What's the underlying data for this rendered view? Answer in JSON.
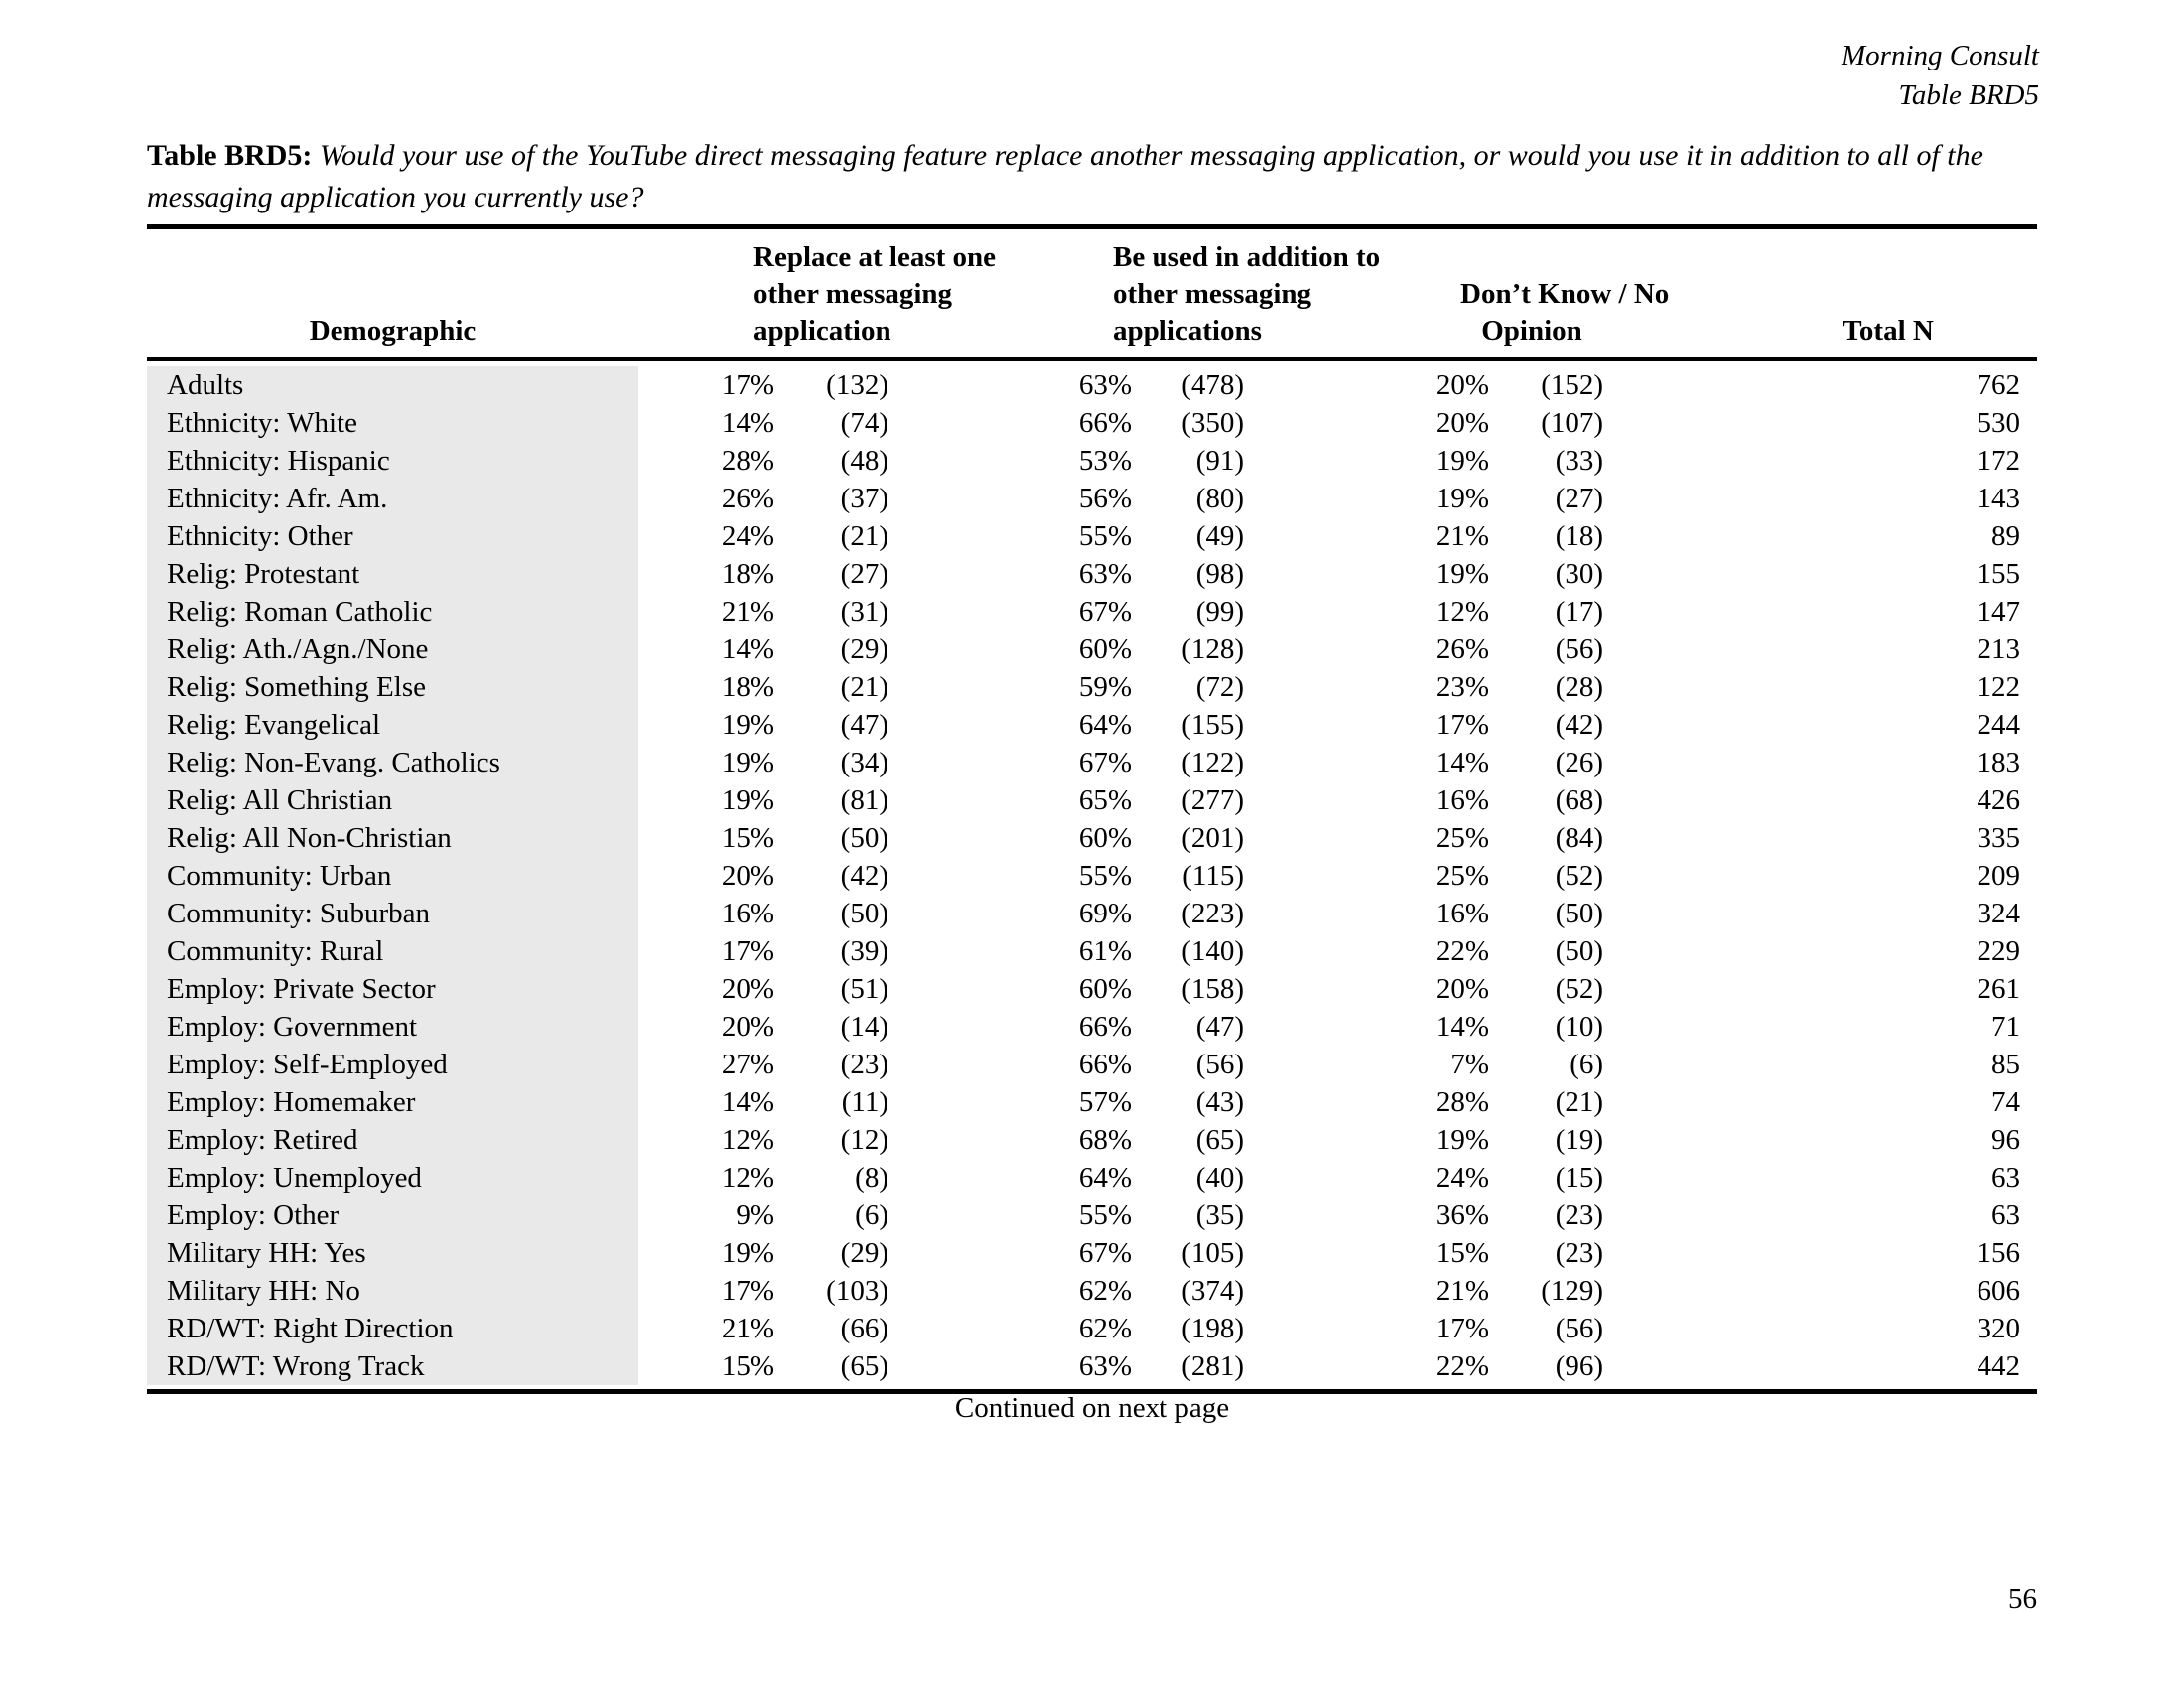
{
  "page": {
    "brand": "Morning Consult",
    "table_ref": "Table BRD5",
    "title_label": "Table BRD5:",
    "title_question": "Would your use of the YouTube direct messaging feature replace another messaging application, or would you use it in addition to all of the messaging application you currently use?",
    "continued_note": "Continued on next page",
    "page_number": "56"
  },
  "table": {
    "header": {
      "demographic": "Demographic",
      "replace_lines": [
        "Replace at least one",
        "other messaging",
        "application"
      ],
      "addition_lines": [
        "Be used in addition to",
        "other messaging",
        "applications"
      ],
      "dontknow_lines": [
        "Don’t Know / No",
        "Opinion"
      ],
      "total": "Total N"
    },
    "rows": [
      {
        "label": "Adults",
        "pct1": "17%",
        "n1": "(132)",
        "pct2": "63%",
        "n2": "(478)",
        "pct3": "20%",
        "n3": "(152)",
        "total": "762"
      },
      {
        "label": "Ethnicity: White",
        "pct1": "14%",
        "n1": "(74)",
        "pct2": "66%",
        "n2": "(350)",
        "pct3": "20%",
        "n3": "(107)",
        "total": "530"
      },
      {
        "label": "Ethnicity: Hispanic",
        "pct1": "28%",
        "n1": "(48)",
        "pct2": "53%",
        "n2": "(91)",
        "pct3": "19%",
        "n3": "(33)",
        "total": "172"
      },
      {
        "label": "Ethnicity: Afr. Am.",
        "pct1": "26%",
        "n1": "(37)",
        "pct2": "56%",
        "n2": "(80)",
        "pct3": "19%",
        "n3": "(27)",
        "total": "143"
      },
      {
        "label": "Ethnicity: Other",
        "pct1": "24%",
        "n1": "(21)",
        "pct2": "55%",
        "n2": "(49)",
        "pct3": "21%",
        "n3": "(18)",
        "total": "89"
      },
      {
        "label": "Relig: Protestant",
        "pct1": "18%",
        "n1": "(27)",
        "pct2": "63%",
        "n2": "(98)",
        "pct3": "19%",
        "n3": "(30)",
        "total": "155"
      },
      {
        "label": "Relig: Roman Catholic",
        "pct1": "21%",
        "n1": "(31)",
        "pct2": "67%",
        "n2": "(99)",
        "pct3": "12%",
        "n3": "(17)",
        "total": "147"
      },
      {
        "label": "Relig: Ath./Agn./None",
        "pct1": "14%",
        "n1": "(29)",
        "pct2": "60%",
        "n2": "(128)",
        "pct3": "26%",
        "n3": "(56)",
        "total": "213"
      },
      {
        "label": "Relig: Something Else",
        "pct1": "18%",
        "n1": "(21)",
        "pct2": "59%",
        "n2": "(72)",
        "pct3": "23%",
        "n3": "(28)",
        "total": "122"
      },
      {
        "label": "Relig: Evangelical",
        "pct1": "19%",
        "n1": "(47)",
        "pct2": "64%",
        "n2": "(155)",
        "pct3": "17%",
        "n3": "(42)",
        "total": "244"
      },
      {
        "label": "Relig: Non-Evang. Catholics",
        "pct1": "19%",
        "n1": "(34)",
        "pct2": "67%",
        "n2": "(122)",
        "pct3": "14%",
        "n3": "(26)",
        "total": "183"
      },
      {
        "label": "Relig: All Christian",
        "pct1": "19%",
        "n1": "(81)",
        "pct2": "65%",
        "n2": "(277)",
        "pct3": "16%",
        "n3": "(68)",
        "total": "426"
      },
      {
        "label": "Relig: All Non-Christian",
        "pct1": "15%",
        "n1": "(50)",
        "pct2": "60%",
        "n2": "(201)",
        "pct3": "25%",
        "n3": "(84)",
        "total": "335"
      },
      {
        "label": "Community: Urban",
        "pct1": "20%",
        "n1": "(42)",
        "pct2": "55%",
        "n2": "(115)",
        "pct3": "25%",
        "n3": "(52)",
        "total": "209"
      },
      {
        "label": "Community: Suburban",
        "pct1": "16%",
        "n1": "(50)",
        "pct2": "69%",
        "n2": "(223)",
        "pct3": "16%",
        "n3": "(50)",
        "total": "324"
      },
      {
        "label": "Community: Rural",
        "pct1": "17%",
        "n1": "(39)",
        "pct2": "61%",
        "n2": "(140)",
        "pct3": "22%",
        "n3": "(50)",
        "total": "229"
      },
      {
        "label": "Employ: Private Sector",
        "pct1": "20%",
        "n1": "(51)",
        "pct2": "60%",
        "n2": "(158)",
        "pct3": "20%",
        "n3": "(52)",
        "total": "261"
      },
      {
        "label": "Employ: Government",
        "pct1": "20%",
        "n1": "(14)",
        "pct2": "66%",
        "n2": "(47)",
        "pct3": "14%",
        "n3": "(10)",
        "total": "71"
      },
      {
        "label": "Employ: Self-Employed",
        "pct1": "27%",
        "n1": "(23)",
        "pct2": "66%",
        "n2": "(56)",
        "pct3": "7%",
        "n3": "(6)",
        "total": "85"
      },
      {
        "label": "Employ: Homemaker",
        "pct1": "14%",
        "n1": "(11)",
        "pct2": "57%",
        "n2": "(43)",
        "pct3": "28%",
        "n3": "(21)",
        "total": "74"
      },
      {
        "label": "Employ: Retired",
        "pct1": "12%",
        "n1": "(12)",
        "pct2": "68%",
        "n2": "(65)",
        "pct3": "19%",
        "n3": "(19)",
        "total": "96"
      },
      {
        "label": "Employ: Unemployed",
        "pct1": "12%",
        "n1": "(8)",
        "pct2": "64%",
        "n2": "(40)",
        "pct3": "24%",
        "n3": "(15)",
        "total": "63"
      },
      {
        "label": "Employ: Other",
        "pct1": "9%",
        "n1": "(6)",
        "pct2": "55%",
        "n2": "(35)",
        "pct3": "36%",
        "n3": "(23)",
        "total": "63"
      },
      {
        "label": "Military HH: Yes",
        "pct1": "19%",
        "n1": "(29)",
        "pct2": "67%",
        "n2": "(105)",
        "pct3": "15%",
        "n3": "(23)",
        "total": "156"
      },
      {
        "label": "Military HH: No",
        "pct1": "17%",
        "n1": "(103)",
        "pct2": "62%",
        "n2": "(374)",
        "pct3": "21%",
        "n3": "(129)",
        "total": "606"
      },
      {
        "label": "RD/WT: Right Direction",
        "pct1": "21%",
        "n1": "(66)",
        "pct2": "62%",
        "n2": "(198)",
        "pct3": "17%",
        "n3": "(56)",
        "total": "320"
      },
      {
        "label": "RD/WT: Wrong Track",
        "pct1": "15%",
        "n1": "(65)",
        "pct2": "63%",
        "n2": "(281)",
        "pct3": "22%",
        "n3": "(96)",
        "total": "442"
      }
    ]
  }
}
